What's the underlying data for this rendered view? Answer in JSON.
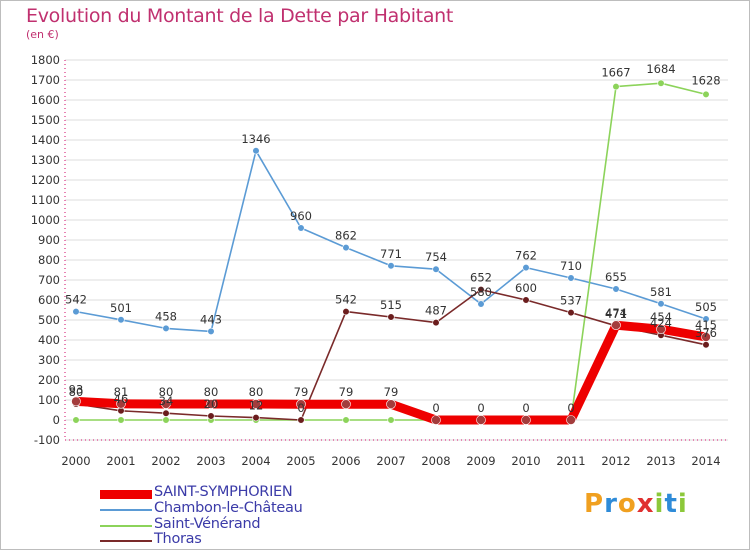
{
  "title": "Evolution du Montant de la Dette par Habitant",
  "unit_label": "(en €)",
  "logo_text": "Proxiti",
  "colors": {
    "title": "#c0306f",
    "axis": "#e05b9a",
    "grid": "#dcdcdc",
    "label": "#333333",
    "legend_text": "#3b3ba8"
  },
  "chart_data": {
    "type": "line",
    "x": [
      2000,
      2001,
      2002,
      2003,
      2004,
      2005,
      2006,
      2007,
      2008,
      2009,
      2010,
      2011,
      2012,
      2013,
      2014
    ],
    "ylim": [
      -100,
      1800
    ],
    "yticks": [
      -100,
      0,
      100,
      200,
      300,
      400,
      500,
      600,
      700,
      800,
      900,
      1000,
      1100,
      1200,
      1300,
      1400,
      1500,
      1600,
      1700,
      1800
    ],
    "grid": true,
    "legend_position": "bottom-left",
    "series": [
      {
        "name": "SAINT-SYMPHORIEN",
        "color": "#ee0000",
        "marker": "#a33c3c",
        "thick": true,
        "values": [
          93,
          81,
          80,
          80,
          80,
          79,
          79,
          79,
          0,
          0,
          0,
          0,
          474,
          454,
          415
        ],
        "labels": [
          "93",
          "81",
          "80",
          "80",
          "80",
          "79",
          "79",
          "79",
          "0",
          "0",
          "0",
          "0",
          "474",
          "454",
          "415"
        ]
      },
      {
        "name": "Chambon-le-Château",
        "color": "#5b9bd5",
        "marker": "#5b9bd5",
        "values": [
          542,
          501,
          458,
          443,
          1346,
          960,
          862,
          771,
          754,
          580,
          762,
          710,
          655,
          581,
          505
        ],
        "labels": [
          "542",
          "501",
          "458",
          "443",
          "1346",
          "960",
          "862",
          "771",
          "754",
          "580",
          "762",
          "710",
          "655",
          "581",
          "505"
        ]
      },
      {
        "name": "Saint-Vénérand",
        "color": "#8cd35a",
        "marker": "#8cd35a",
        "values": [
          0,
          0,
          0,
          0,
          0,
          0,
          0,
          0,
          0,
          0,
          0,
          0,
          1667,
          1684,
          1628
        ],
        "labels": [
          "0",
          "0",
          "0",
          "0",
          "0",
          "0",
          "0",
          "0",
          "0",
          "0",
          "0",
          "0",
          "1667",
          "1684",
          "1628"
        ]
      },
      {
        "name": "Thoras",
        "color": "#7a2a2a",
        "marker": "#6b1d1d",
        "values": [
          80,
          46,
          34,
          20,
          12,
          0,
          542,
          515,
          487,
          652,
          600,
          537,
          471,
          424,
          376
        ],
        "labels": [
          "80",
          "46",
          "34",
          "20",
          "12",
          "0",
          "542",
          "515",
          "487",
          "652",
          "600",
          "537",
          "471",
          "424",
          "376"
        ]
      }
    ]
  }
}
